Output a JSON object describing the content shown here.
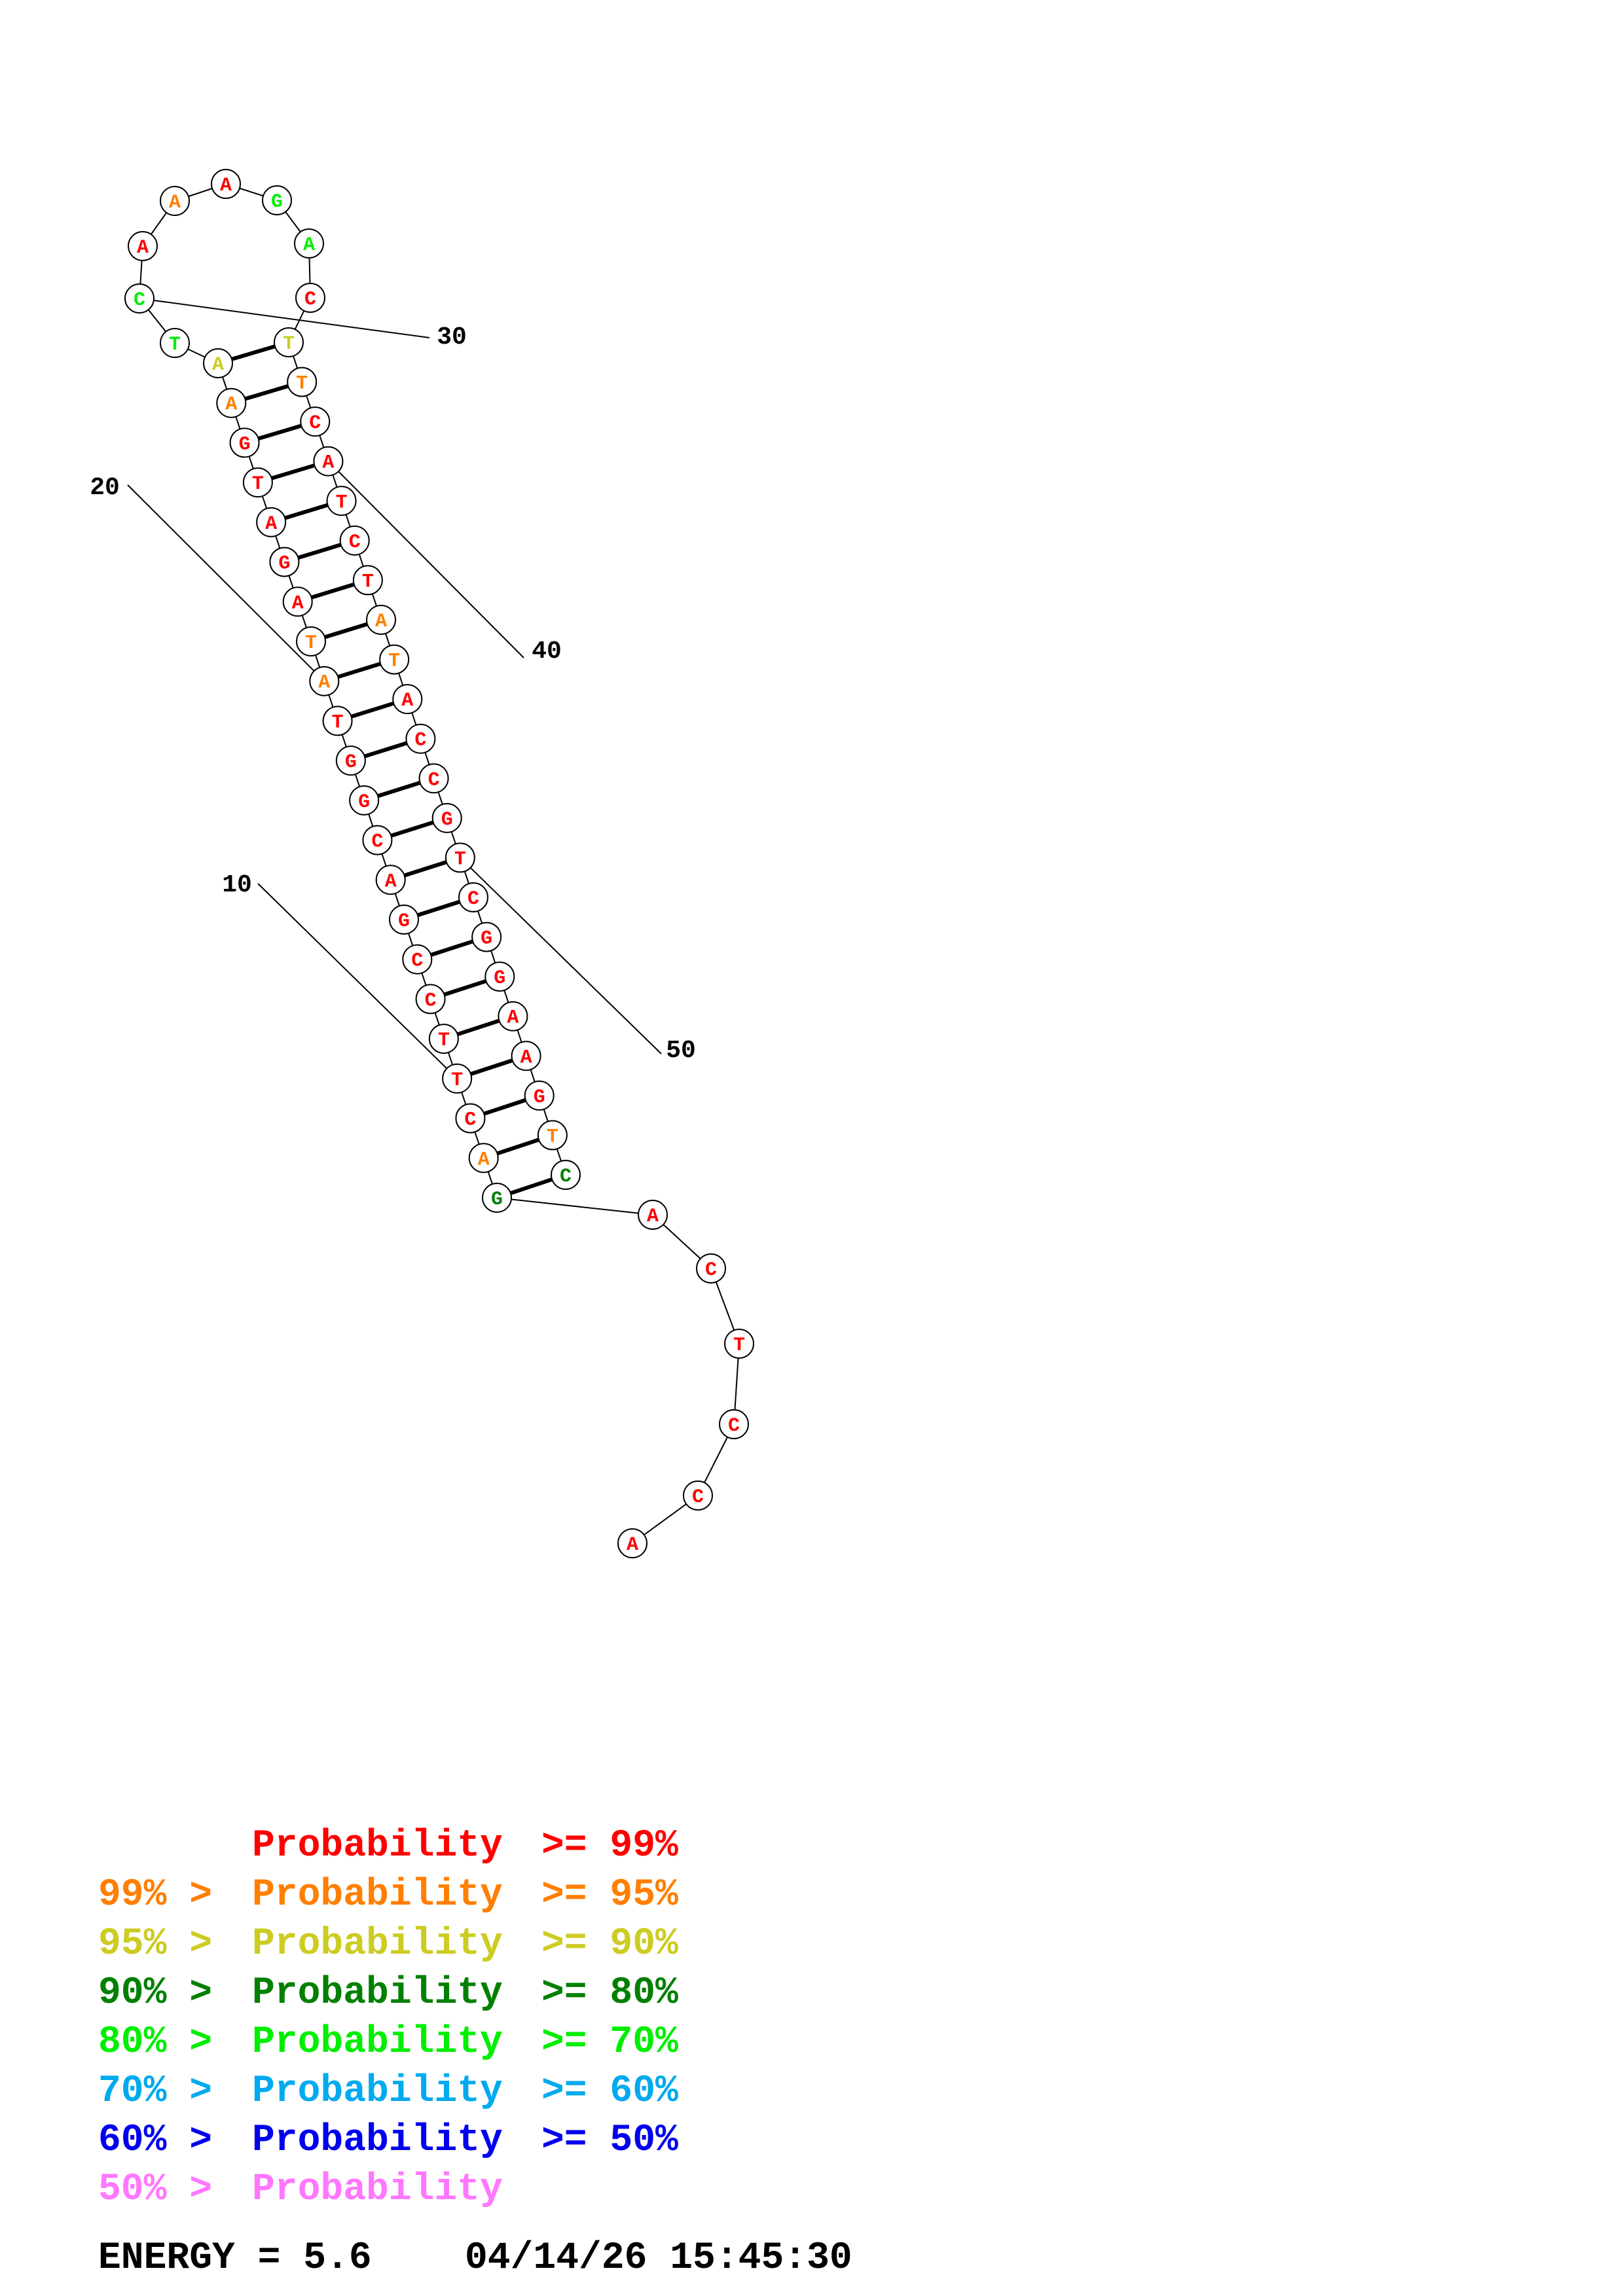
{
  "colors": {
    "p99": "#ff0000",
    "p95": "#ff7f00",
    "p90": "#cccc22",
    "p80": "#008000",
    "p70": "#00ee00",
    "p60": "#00aaee",
    "p50": "#0000ee",
    "plow": "#ff77ff"
  },
  "sequence": [
    {
      "n": 1,
      "base": "A",
      "color": "p99"
    },
    {
      "n": 2,
      "base": "C",
      "color": "p99"
    },
    {
      "n": 3,
      "base": "C",
      "color": "p99"
    },
    {
      "n": 4,
      "base": "T",
      "color": "p99"
    },
    {
      "n": 5,
      "base": "C",
      "color": "p99"
    },
    {
      "n": 6,
      "base": "A",
      "color": "p99"
    },
    {
      "n": 7,
      "base": "G",
      "color": "p80"
    },
    {
      "n": 8,
      "base": "A",
      "color": "p95"
    },
    {
      "n": 9,
      "base": "C",
      "color": "p99"
    },
    {
      "n": 10,
      "base": "T",
      "color": "p99"
    },
    {
      "n": 11,
      "base": "T",
      "color": "p99"
    },
    {
      "n": 12,
      "base": "C",
      "color": "p99"
    },
    {
      "n": 13,
      "base": "C",
      "color": "p99"
    },
    {
      "n": 14,
      "base": "G",
      "color": "p99"
    },
    {
      "n": 15,
      "base": "A",
      "color": "p99"
    },
    {
      "n": 16,
      "base": "C",
      "color": "p99"
    },
    {
      "n": 17,
      "base": "G",
      "color": "p99"
    },
    {
      "n": 18,
      "base": "G",
      "color": "p99"
    },
    {
      "n": 19,
      "base": "T",
      "color": "p99"
    },
    {
      "n": 20,
      "base": "A",
      "color": "p95"
    },
    {
      "n": 21,
      "base": "T",
      "color": "p95"
    },
    {
      "n": 22,
      "base": "A",
      "color": "p99"
    },
    {
      "n": 23,
      "base": "G",
      "color": "p99"
    },
    {
      "n": 24,
      "base": "A",
      "color": "p99"
    },
    {
      "n": 25,
      "base": "T",
      "color": "p99"
    },
    {
      "n": 26,
      "base": "G",
      "color": "p99"
    },
    {
      "n": 27,
      "base": "A",
      "color": "p95"
    },
    {
      "n": 28,
      "base": "A",
      "color": "p90"
    },
    {
      "n": 29,
      "base": "T",
      "color": "p70"
    },
    {
      "n": 30,
      "base": "C",
      "color": "p70"
    },
    {
      "n": 31,
      "base": "A",
      "color": "p99"
    },
    {
      "n": 32,
      "base": "A",
      "color": "p95"
    },
    {
      "n": 33,
      "base": "A",
      "color": "p99"
    },
    {
      "n": 34,
      "base": "G",
      "color": "p70"
    },
    {
      "n": 35,
      "base": "A",
      "color": "p70"
    },
    {
      "n": 36,
      "base": "C",
      "color": "p99"
    },
    {
      "n": 37,
      "base": "T",
      "color": "p90"
    },
    {
      "n": 38,
      "base": "T",
      "color": "p95"
    },
    {
      "n": 39,
      "base": "C",
      "color": "p99"
    },
    {
      "n": 40,
      "base": "A",
      "color": "p99"
    },
    {
      "n": 41,
      "base": "T",
      "color": "p99"
    },
    {
      "n": 42,
      "base": "C",
      "color": "p99"
    },
    {
      "n": 43,
      "base": "T",
      "color": "p99"
    },
    {
      "n": 44,
      "base": "A",
      "color": "p95"
    },
    {
      "n": 45,
      "base": "T",
      "color": "p95"
    },
    {
      "n": 46,
      "base": "A",
      "color": "p99"
    },
    {
      "n": 47,
      "base": "C",
      "color": "p99"
    },
    {
      "n": 48,
      "base": "C",
      "color": "p99"
    },
    {
      "n": 49,
      "base": "G",
      "color": "p99"
    },
    {
      "n": 50,
      "base": "T",
      "color": "p99"
    },
    {
      "n": 51,
      "base": "C",
      "color": "p99"
    },
    {
      "n": 52,
      "base": "G",
      "color": "p99"
    },
    {
      "n": 53,
      "base": "G",
      "color": "p99"
    },
    {
      "n": 54,
      "base": "A",
      "color": "p99"
    },
    {
      "n": 55,
      "base": "A",
      "color": "p99"
    },
    {
      "n": 56,
      "base": "G",
      "color": "p99"
    },
    {
      "n": 57,
      "base": "T",
      "color": "p95"
    },
    {
      "n": 58,
      "base": "C",
      "color": "p80"
    }
  ],
  "pairs": [
    [
      7,
      58
    ],
    [
      8,
      57
    ],
    [
      9,
      56
    ],
    [
      10,
      55
    ],
    [
      11,
      54
    ],
    [
      12,
      53
    ],
    [
      13,
      52
    ],
    [
      14,
      51
    ],
    [
      15,
      50
    ],
    [
      16,
      49
    ],
    [
      17,
      48
    ],
    [
      18,
      47
    ],
    [
      19,
      46
    ],
    [
      20,
      45
    ],
    [
      21,
      44
    ],
    [
      22,
      43
    ],
    [
      23,
      42
    ],
    [
      24,
      41
    ],
    [
      25,
      40
    ],
    [
      26,
      39
    ],
    [
      27,
      38
    ],
    [
      28,
      37
    ]
  ],
  "position_labels": [
    {
      "n": 10,
      "text": "10"
    },
    {
      "n": 20,
      "text": "20"
    },
    {
      "n": 30,
      "text": "30"
    },
    {
      "n": 40,
      "text": "40"
    },
    {
      "n": 50,
      "text": "50"
    }
  ],
  "legend": [
    {
      "prefix": "",
      "label": "Probability",
      "suffix": ">= 99%",
      "color": "p99"
    },
    {
      "prefix": "99% >",
      "label": "Probability",
      "suffix": ">= 95%",
      "color": "p95"
    },
    {
      "prefix": "95% >",
      "label": "Probability",
      "suffix": ">= 90%",
      "color": "p90"
    },
    {
      "prefix": "90% >",
      "label": "Probability",
      "suffix": ">= 80%",
      "color": "p80"
    },
    {
      "prefix": "80% >",
      "label": "Probability",
      "suffix": ">= 70%",
      "color": "p70"
    },
    {
      "prefix": "70% >",
      "label": "Probability",
      "suffix": ">= 60%",
      "color": "p60"
    },
    {
      "prefix": "60% >",
      "label": "Probability",
      "suffix": ">= 50%",
      "color": "p50"
    },
    {
      "prefix": "50% >",
      "label": "Probability",
      "suffix": "",
      "color": "plow"
    }
  ],
  "footer": {
    "energy_label": "ENERGY = 5.6",
    "timestamp": "04/14/26 15:45:30"
  }
}
